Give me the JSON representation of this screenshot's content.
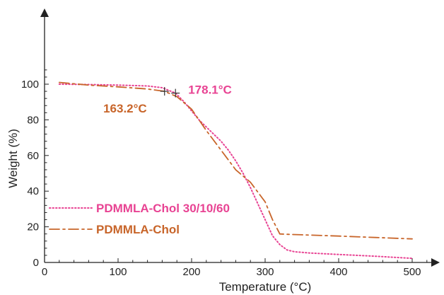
{
  "chart_data": {
    "type": "line",
    "xlabel": "Temperature (°C)",
    "ylabel": "Weight (%)",
    "xlim": [
      0,
      520
    ],
    "ylim": [
      0,
      110
    ],
    "x_ticks": [
      0,
      100,
      200,
      300,
      400,
      500
    ],
    "y_ticks": [
      0,
      20,
      40,
      60,
      80,
      100
    ],
    "grid": false,
    "legend_position": "bottom-left",
    "series": [
      {
        "name": "PDMMLA-Chol 30/10/60",
        "color": "#e84393",
        "style": "dotted",
        "x": [
          20,
          60,
          100,
          140,
          160,
          178.1,
          190,
          200,
          210,
          220,
          230,
          240,
          250,
          260,
          270,
          280,
          290,
          300,
          310,
          320,
          330,
          340,
          360,
          400,
          450,
          500
        ],
        "y": [
          100,
          99.8,
          99.5,
          99,
          98,
          95,
          90,
          85,
          80,
          76,
          72,
          68,
          63,
          57,
          50,
          42,
          33,
          24,
          15,
          10,
          7,
          6,
          5.3,
          4.5,
          3.5,
          2.3
        ]
      },
      {
        "name": "PDMMLA-Chol",
        "color": "#c8652a",
        "style": "dashdot",
        "x": [
          20,
          60,
          100,
          140,
          163.2,
          180,
          200,
          220,
          240,
          260,
          280,
          300,
          310,
          320,
          330,
          350,
          400,
          450,
          500
        ],
        "y": [
          101,
          99.5,
          98.5,
          97.3,
          96,
          93,
          86,
          74,
          63,
          52,
          45,
          34,
          24,
          16,
          15.8,
          15.5,
          14.8,
          14,
          13.2
        ]
      }
    ],
    "annotations": [
      {
        "text": "178.1°C",
        "x": 178.1,
        "y": 95,
        "color": "#e84393"
      },
      {
        "text": "163.2°C",
        "x": 163.2,
        "y": 96,
        "color": "#c8652a"
      }
    ]
  }
}
